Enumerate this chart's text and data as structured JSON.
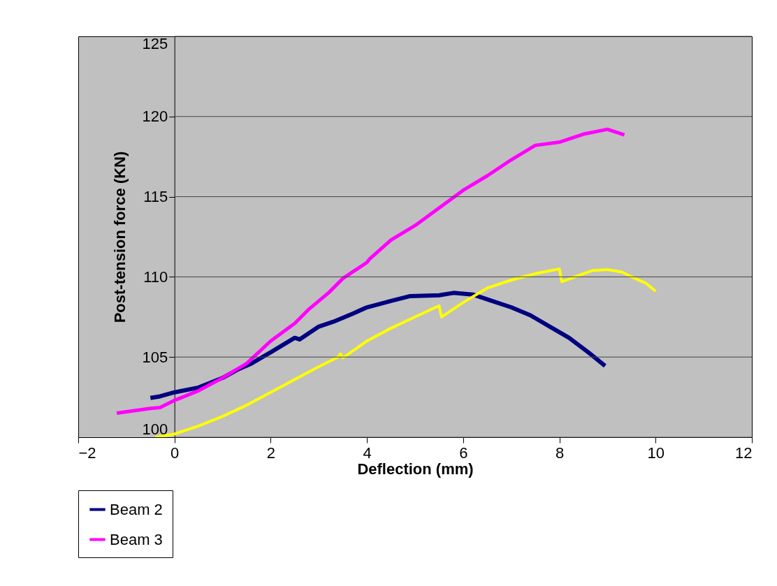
{
  "chart_data": {
    "type": "line",
    "xlabel": "Deflection (mm)",
    "ylabel": "Post-tension force (KN)",
    "xlim": [
      -2,
      12
    ],
    "xticks": [
      -2,
      0,
      2,
      4,
      6,
      8,
      10,
      12
    ],
    "ylim": [
      100,
      125
    ],
    "yticks": [
      100,
      105,
      110,
      115,
      120,
      125
    ],
    "grid": "y",
    "legend": "bottom",
    "marker": "none",
    "line_style": "solid",
    "series": [
      {
        "name": "Beam 2",
        "color": "#000080",
        "x": [
          -0.5,
          -0.3,
          0,
          0.5,
          1,
          1.3,
          1.6,
          2,
          2.5,
          2.6,
          3,
          3.3,
          3.7,
          4,
          4.5,
          4.9,
          5.5,
          5.8,
          6.2,
          6.6,
          7,
          7.4,
          7.8,
          8.2,
          8.6,
          8.95
        ],
        "values": [
          102.45,
          102.55,
          102.8,
          103.1,
          103.7,
          104.2,
          104.6,
          105.3,
          106.2,
          106.1,
          106.9,
          107.2,
          107.7,
          108.1,
          108.5,
          108.8,
          108.85,
          109.0,
          108.9,
          108.5,
          108.1,
          107.6,
          106.9,
          106.2,
          105.3,
          104.45
        ]
      },
      {
        "name": "Beam 3",
        "color": "#ff00ff",
        "x": [
          -1.2,
          -0.5,
          -0.3,
          0,
          0.5,
          1,
          1.5,
          2,
          2.5,
          2.8,
          3.2,
          3.5,
          4,
          4.05,
          4.5,
          5,
          5.5,
          6,
          6.5,
          7,
          7.5,
          8,
          8.5,
          9,
          9.35
        ],
        "values": [
          101.5,
          101.8,
          101.85,
          102.3,
          102.9,
          103.7,
          104.6,
          106.0,
          107.1,
          108.0,
          109.0,
          109.9,
          110.9,
          111.1,
          112.3,
          113.2,
          114.3,
          115.4,
          116.3,
          117.3,
          118.2,
          118.4,
          118.9,
          119.2,
          118.85
        ]
      },
      {
        "color": "#ffff00",
        "x": [
          -0.4,
          0,
          0.5,
          1,
          1.5,
          2,
          2.5,
          3,
          3.4,
          3.45,
          3.5,
          4,
          4.5,
          5,
          5.5,
          5.55,
          6,
          6.5,
          7,
          7.5,
          8,
          8.05,
          8.5,
          8.7,
          9,
          9.3,
          9.5,
          9.8,
          10
        ],
        "values": [
          100.0,
          100.2,
          100.7,
          101.3,
          102.0,
          102.8,
          103.6,
          104.4,
          105.0,
          105.2,
          104.95,
          106.0,
          106.8,
          107.5,
          108.2,
          107.5,
          108.4,
          109.3,
          109.8,
          110.2,
          110.5,
          109.7,
          110.2,
          110.4,
          110.45,
          110.3,
          110.0,
          109.6,
          109.1
        ]
      }
    ]
  }
}
